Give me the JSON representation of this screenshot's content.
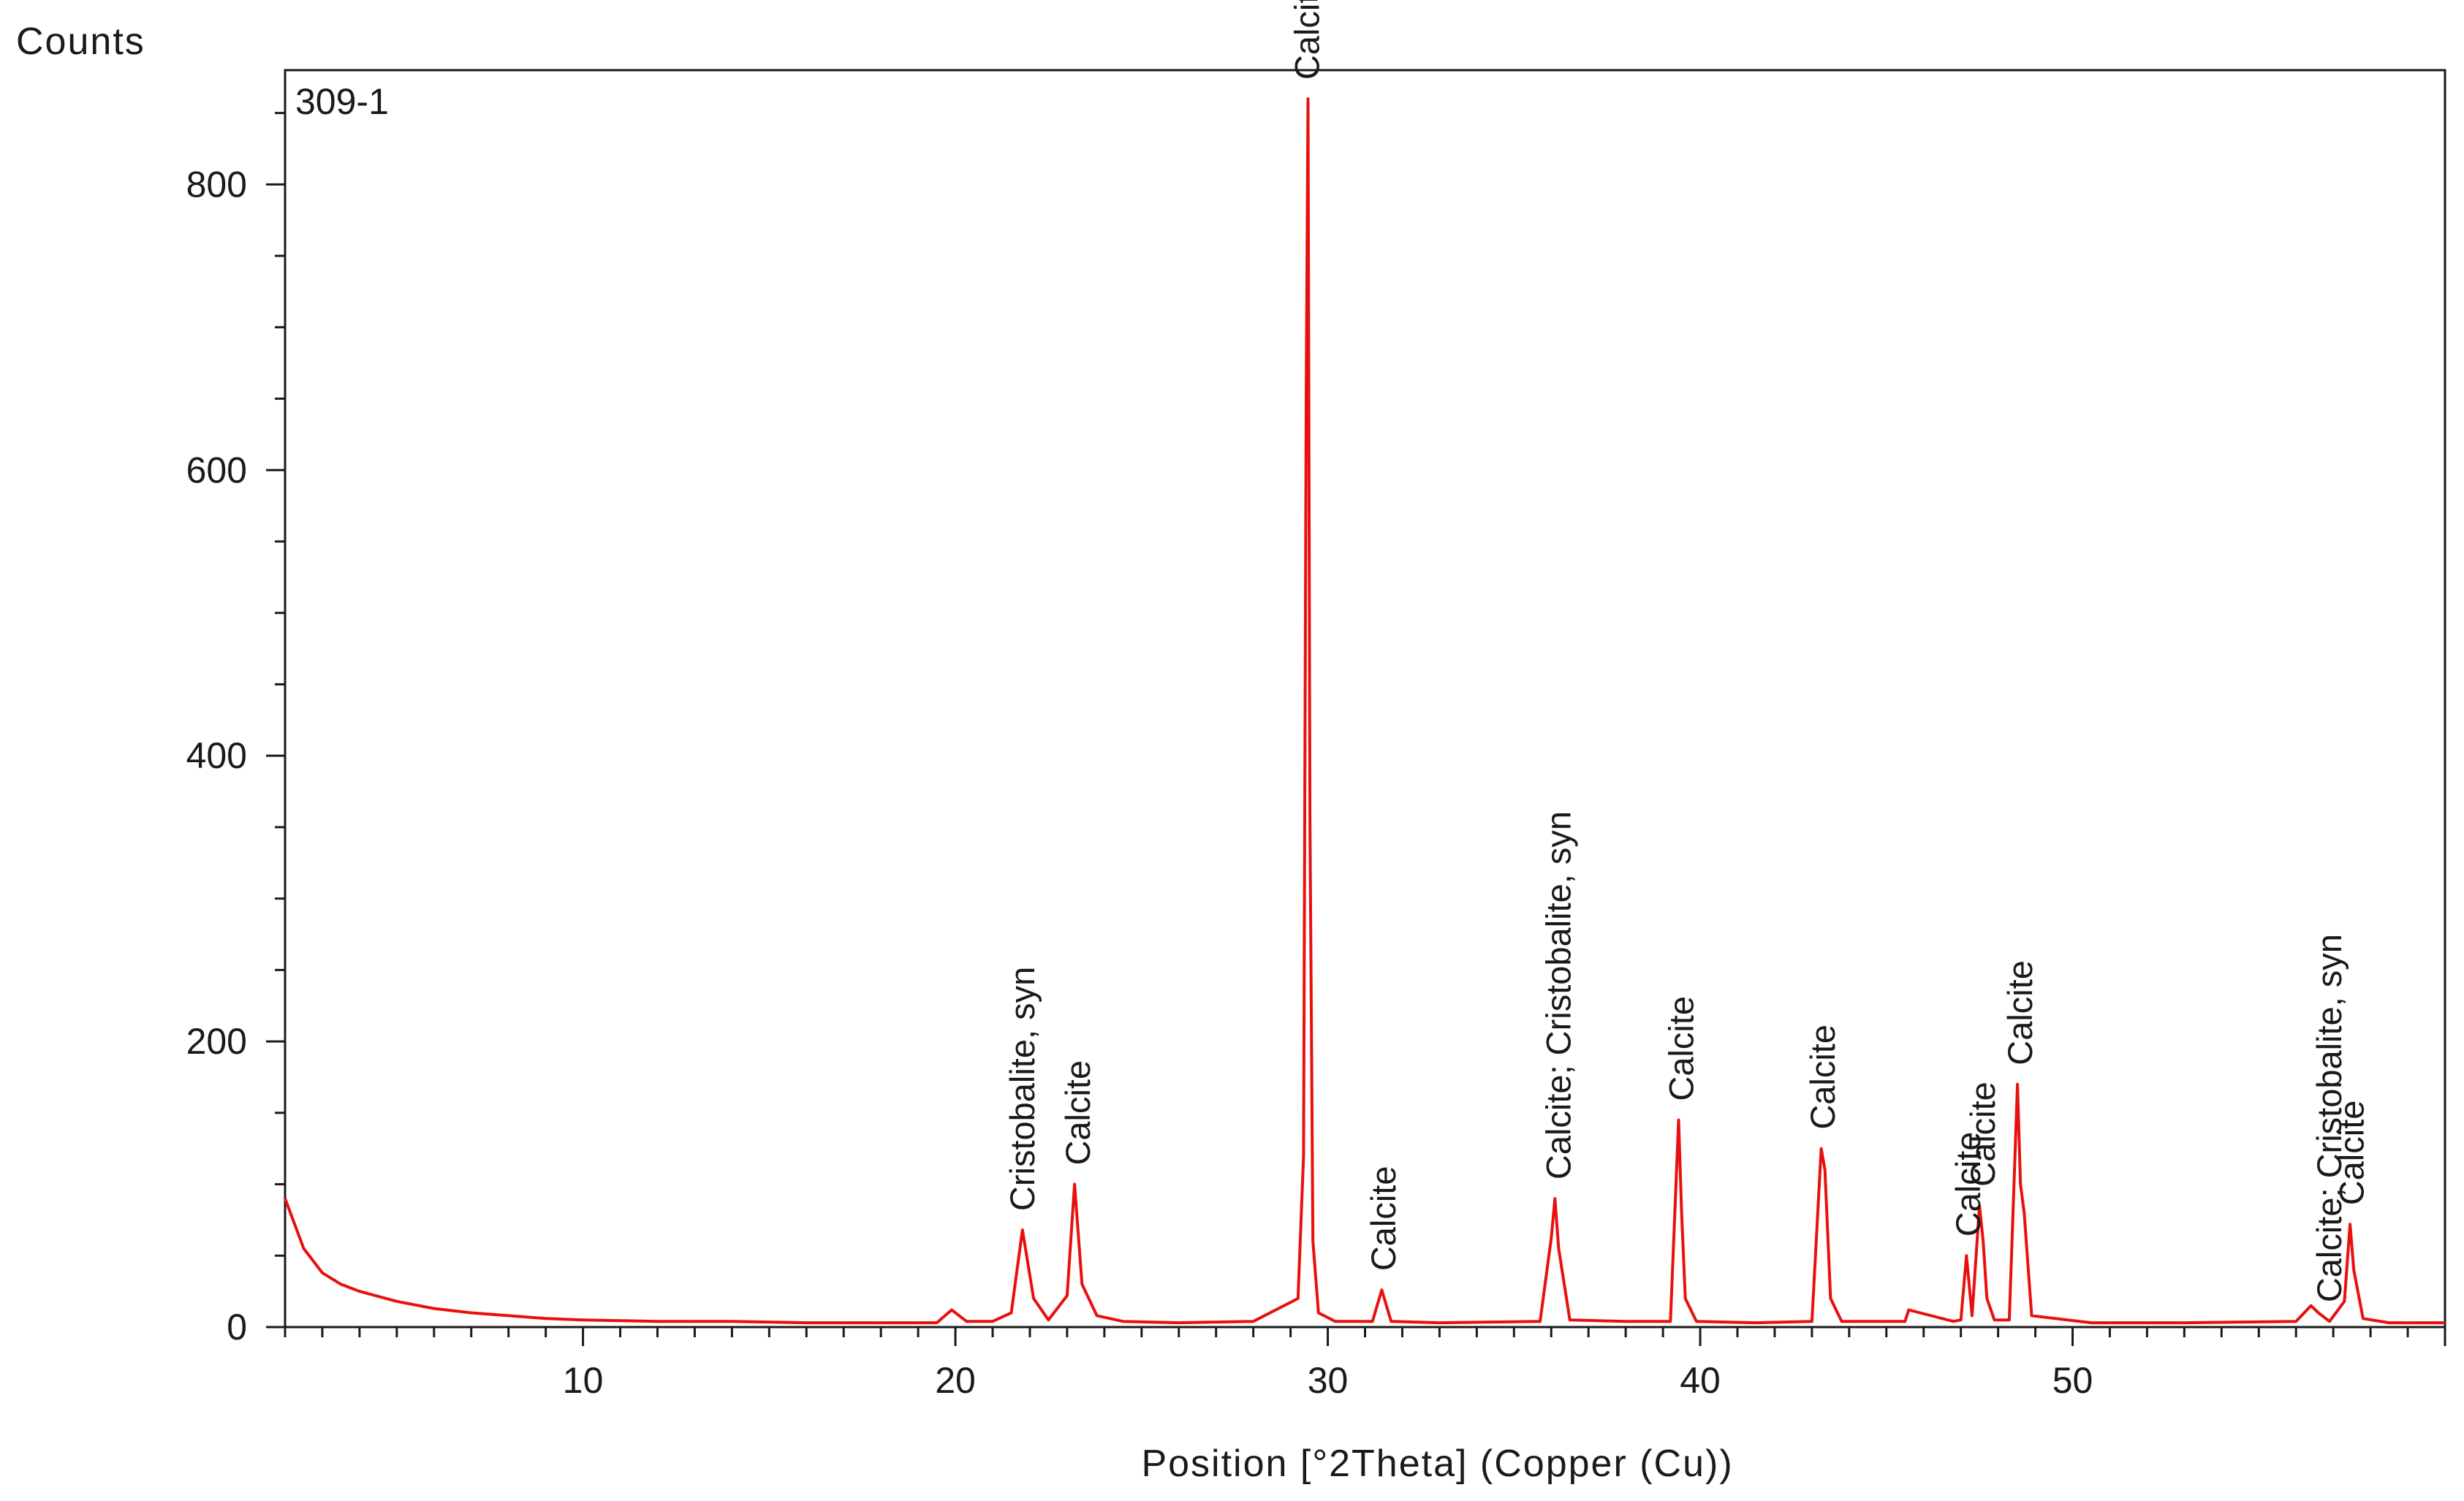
{
  "chart_data": {
    "type": "line",
    "title": "",
    "sample_label": "309-1",
    "xlabel": "Position [°2Theta] (Copper (Cu))",
    "ylabel": "Counts",
    "xlim": [
      2,
      60
    ],
    "ylim": [
      0,
      880
    ],
    "x_ticks": [
      10,
      20,
      30,
      40,
      50
    ],
    "y_ticks": [
      0,
      200,
      400,
      600,
      800
    ],
    "grid": false,
    "line_color": "#e8100e",
    "series": [
      {
        "x": [
          2.0,
          2.5,
          3.0,
          3.5,
          4.0,
          5.0,
          6.0,
          7.0,
          8.0,
          9.0,
          10.0,
          12.0,
          14.0,
          16.0,
          18.0,
          19.5,
          19.9,
          20.3,
          21.0,
          21.5,
          21.8,
          22.1,
          22.5,
          23.0,
          23.2,
          23.4,
          23.8,
          24.5,
          26.0,
          28.0,
          29.2,
          29.35,
          29.42,
          29.47,
          29.52,
          29.6,
          29.75,
          30.2,
          31.2,
          31.45,
          31.7,
          33.0,
          35.7,
          36.0,
          36.1,
          36.2,
          36.5,
          38.0,
          39.2,
          39.42,
          39.5,
          39.6,
          39.9,
          41.5,
          43.0,
          43.25,
          43.35,
          43.5,
          43.8,
          45.5,
          45.6,
          46.8,
          47.0,
          47.15,
          47.3,
          47.5,
          47.6,
          47.7,
          47.9,
          48.3,
          48.52,
          48.6,
          48.7,
          48.9,
          50.5,
          53.0,
          56.0,
          56.4,
          56.6,
          56.9,
          57.3,
          57.45,
          57.55,
          57.8,
          58.5,
          60.0
        ],
        "y": [
          90,
          55,
          38,
          30,
          25,
          18,
          13,
          10,
          8,
          6,
          5,
          4,
          4,
          3,
          3,
          3,
          12,
          4,
          4,
          10,
          68,
          20,
          5,
          22,
          100,
          30,
          8,
          4,
          3,
          4,
          20,
          120,
          650,
          860,
          360,
          60,
          10,
          4,
          4,
          26,
          4,
          3,
          4,
          62,
          90,
          55,
          5,
          4,
          4,
          145,
          80,
          20,
          4,
          3,
          4,
          125,
          110,
          20,
          4,
          4,
          12,
          4,
          5,
          50,
          8,
          85,
          60,
          20,
          5,
          5,
          170,
          100,
          80,
          8,
          3,
          3,
          4,
          15,
          10,
          4,
          18,
          72,
          40,
          6,
          3,
          3
        ]
      }
    ],
    "annotations": [
      {
        "x": 29.45,
        "text": "Calcite"
      },
      {
        "x": 21.8,
        "text": "Cristobalite, syn"
      },
      {
        "x": 23.3,
        "text": "Calcite"
      },
      {
        "x": 31.5,
        "text": "Calcite"
      },
      {
        "x": 36.2,
        "text": "Calcite; Cristobalite, syn"
      },
      {
        "x": 39.5,
        "text": "Calcite"
      },
      {
        "x": 43.3,
        "text": "Calcite"
      },
      {
        "x": 47.2,
        "text": "Calcite"
      },
      {
        "x": 47.6,
        "text": "Calcite"
      },
      {
        "x": 48.6,
        "text": "Calcite"
      },
      {
        "x": 56.9,
        "text": "Calcite; Cristobalite, syn"
      },
      {
        "x": 57.5,
        "text": "Calcite"
      }
    ]
  }
}
